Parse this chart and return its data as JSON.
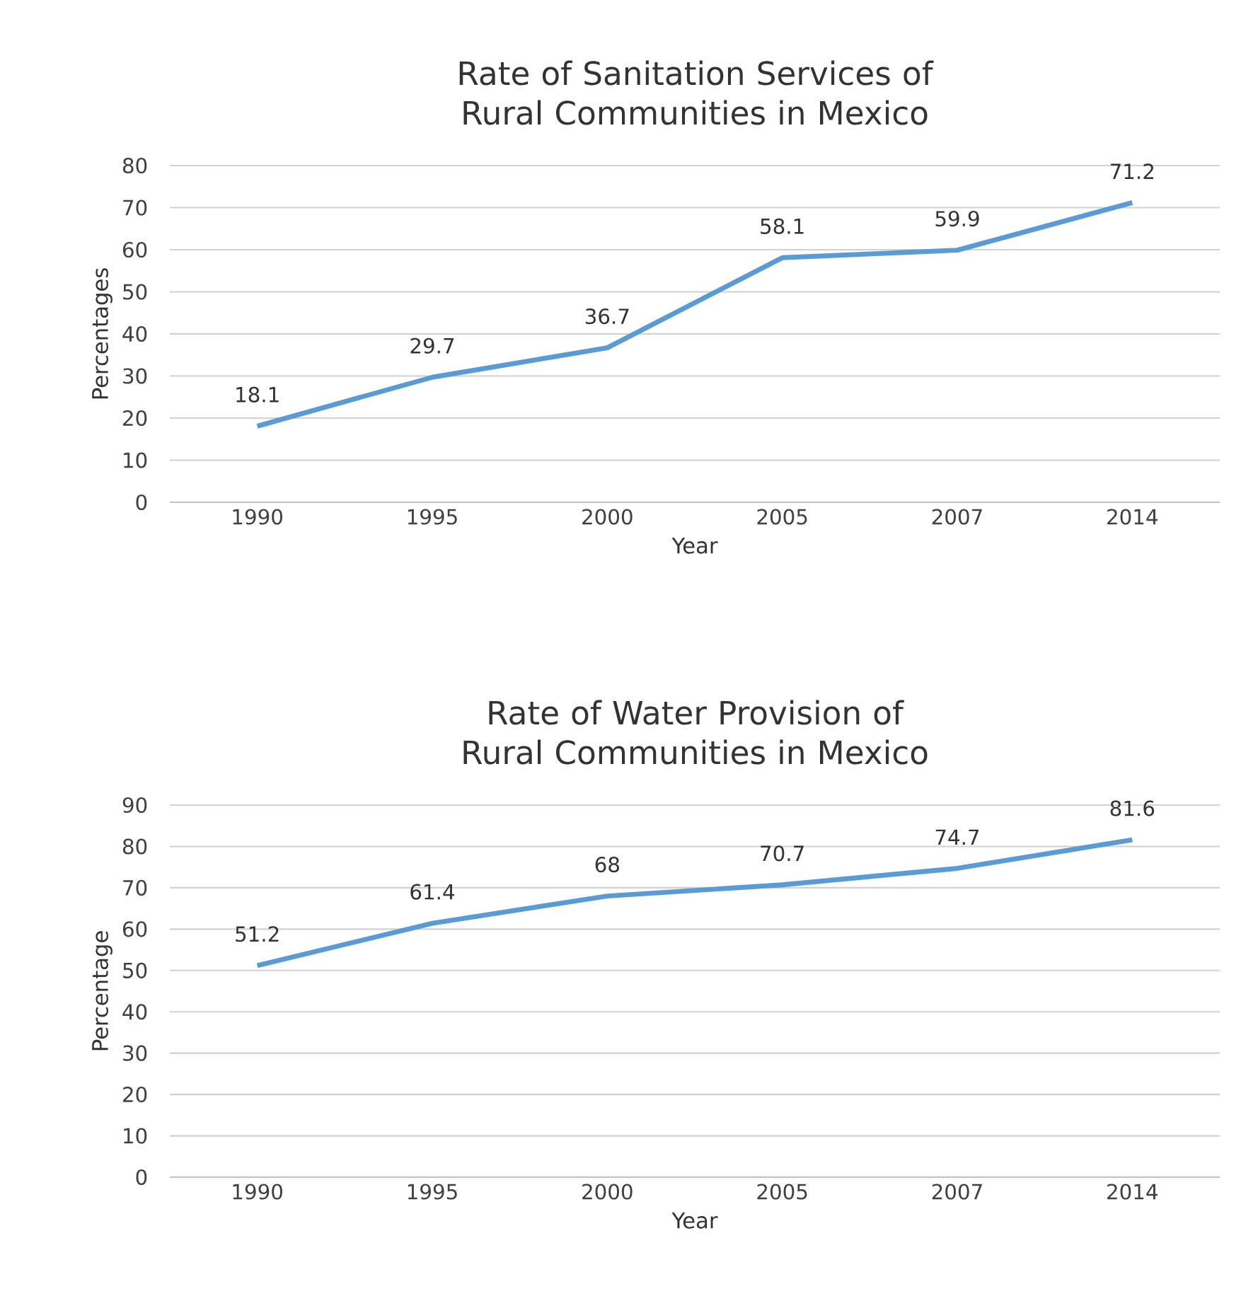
{
  "chart_data": [
    {
      "type": "line",
      "title": "Rate of Sanitation Services of Rural Communities in Mexico",
      "xlabel": "Year",
      "ylabel": "Percentages",
      "categories": [
        "1990",
        "1995",
        "2000",
        "2005",
        "2007",
        "2014"
      ],
      "series": [
        {
          "color": "#5b9bd5",
          "values": [
            18.1,
            29.7,
            36.7,
            58.1,
            59.9,
            71.2
          ],
          "value_labels": [
            "18.1",
            "29.7",
            "36.7",
            "58.1",
            "59.9",
            "71.2"
          ]
        }
      ],
      "ylim": [
        0,
        80
      ],
      "yticks": [
        0,
        10,
        20,
        30,
        40,
        50,
        60,
        70,
        80
      ],
      "grid": "y",
      "marker": "none",
      "line_style": "solid"
    },
    {
      "type": "line",
      "title": "Rate of Water Provision of Rural Communities in Mexico",
      "xlabel": "Year",
      "ylabel": "Percentage",
      "categories": [
        "1990",
        "1995",
        "2000",
        "2005",
        "2007",
        "2014"
      ],
      "series": [
        {
          "color": "#5b9bd5",
          "values": [
            51.2,
            61.4,
            68,
            70.7,
            74.7,
            81.6
          ],
          "value_labels": [
            "51.2",
            "61.4",
            "68",
            "70.7",
            "74.7",
            "81.6"
          ]
        }
      ],
      "ylim": [
        0,
        90
      ],
      "yticks": [
        0,
        10,
        20,
        30,
        40,
        50,
        60,
        70,
        80,
        90
      ],
      "grid": "y",
      "marker": "none",
      "line_style": "solid"
    }
  ]
}
